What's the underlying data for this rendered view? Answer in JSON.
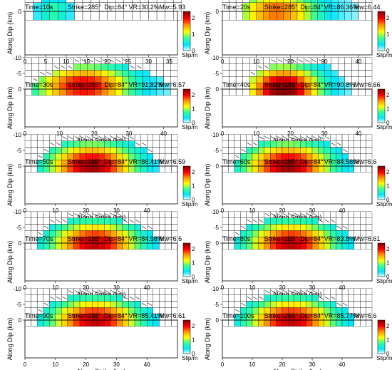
{
  "figure": {
    "colorbar_label": "Slip/m",
    "colorbar_ticks": [
      "2",
      "1",
      "0"
    ],
    "colormap": [
      "#ffffff",
      "#00e5ff",
      "#33ff99",
      "#ffff00",
      "#ff9900",
      "#ff0000",
      "#8b0000"
    ]
  },
  "chart_data": [
    {
      "type": "heatmap",
      "title": "Time=10s",
      "strike": "Strike=285°",
      "dip": "Dip=84°",
      "vr": "VR=30.2%",
      "mw": "Mw=5.93",
      "xlabel": "Along Strike (km)",
      "ylabel": "Along Dip (km)",
      "xlim": [
        0,
        37
      ],
      "ylim": [
        -10,
        0
      ],
      "xticks": [
        0,
        5,
        10,
        15,
        20,
        25,
        30,
        35
      ],
      "yticks": [
        0,
        -5,
        -10
      ],
      "cell_km": 2.0,
      "rupture": {
        "x_start": 2,
        "x_end": 13,
        "depth": 6,
        "peak_x": 7,
        "peak_depth": 2,
        "peak_slip": 0.6
      }
    },
    {
      "type": "heatmap",
      "title": "Time=20s",
      "strike": "Strike=285°",
      "dip": "Dip=84°",
      "vr": "VR=86.36%",
      "mw": "Mw=6.44",
      "xlabel": "Along Strike (km)",
      "ylabel": "Along Dip (km)",
      "xlim": [
        0,
        44
      ],
      "ylim": [
        -10,
        0
      ],
      "xticks": [
        0,
        10,
        20,
        30,
        40
      ],
      "yticks": [
        0,
        -5,
        -10
      ],
      "cell_km": 2.0,
      "rupture": {
        "x_start": 5,
        "x_end": 41,
        "depth": 8,
        "peak_x": 16,
        "peak_depth": 2,
        "peak_slip": 1.6
      }
    },
    {
      "type": "heatmap",
      "title": "Time=30s",
      "strike": "Strike=285°",
      "dip": "Dip=84°",
      "vr": "VR=91.82%",
      "mw": "Mw=6.57",
      "xlabel": "Along Strike (km)",
      "ylabel": "Along Dip (km)",
      "xlim": [
        0,
        44
      ],
      "ylim": [
        -12,
        0
      ],
      "xticks": [
        0,
        10,
        20,
        30,
        40
      ],
      "yticks": [
        0,
        -5,
        -10
      ],
      "cell_km": 2.0,
      "rupture": {
        "x_start": 2,
        "x_end": 42,
        "depth": 10,
        "peak_x": 17,
        "peak_depth": 3,
        "peak_slip": 2.0
      }
    },
    {
      "type": "heatmap",
      "title": "Time=40s",
      "strike": "Strike=285°",
      "dip": "Dip=84°",
      "vr": "VR=90.8%",
      "mw": "Mw=6.66",
      "xlabel": "Along Strike (km)",
      "ylabel": "Along Dip (km)",
      "xlim": [
        0,
        44
      ],
      "ylim": [
        -12,
        0
      ],
      "xticks": [
        0,
        10,
        20,
        30,
        40
      ],
      "yticks": [
        0,
        -5,
        -10
      ],
      "cell_km": 2.0,
      "rupture": {
        "x_start": 7,
        "x_end": 38,
        "depth": 11,
        "peak_x": 18,
        "peak_depth": 2,
        "peak_slip": 2.4
      }
    },
    {
      "type": "heatmap",
      "title": "Time=50s",
      "strike": "Strike=285°",
      "dip": "Dip=84°",
      "vr": "VR=86.41%",
      "mw": "Mw=6.59",
      "xlabel": "Along Strike (km)",
      "ylabel": "Along Dip (km)",
      "xlim": [
        0,
        50
      ],
      "ylim": [
        -12,
        0
      ],
      "xticks": [
        0,
        10,
        20,
        30,
        40
      ],
      "yticks": [
        0,
        -5,
        -10
      ],
      "cell_km": 2.0,
      "rupture": {
        "x_start": 3,
        "x_end": 44,
        "depth": 11,
        "peak_x": 22,
        "peak_depth": 2,
        "peak_slip": 2.2
      }
    },
    {
      "type": "heatmap",
      "title": "Time=60s",
      "strike": "Strike=285°",
      "dip": "Dip=84°",
      "vr": "VR=84.58%",
      "mw": "Mw=6.6",
      "xlabel": "Along Strike (km)",
      "ylabel": "Along Dip (km)",
      "xlim": [
        0,
        50
      ],
      "ylim": [
        -12,
        0
      ],
      "xticks": [
        0,
        10,
        20,
        30,
        40
      ],
      "yticks": [
        0,
        -5,
        -10
      ],
      "cell_km": 2.0,
      "rupture": {
        "x_start": 3,
        "x_end": 44,
        "depth": 11,
        "peak_x": 22,
        "peak_depth": 2,
        "peak_slip": 2.2
      }
    },
    {
      "type": "heatmap",
      "title": "Time=70s",
      "strike": "Strike=285°",
      "dip": "Dip=84°",
      "vr": "VR=84.98%",
      "mw": "Mw=6.6",
      "xlabel": "Along Strike (km)",
      "ylabel": "Along Dip (km)",
      "xlim": [
        0,
        50
      ],
      "ylim": [
        -12,
        0
      ],
      "xticks": [
        0,
        10,
        20,
        30,
        40
      ],
      "yticks": [
        0,
        -5,
        -10
      ],
      "cell_km": 2.0,
      "rupture": {
        "x_start": 3,
        "x_end": 44,
        "depth": 10,
        "peak_x": 23,
        "peak_depth": 2,
        "peak_slip": 2.1
      }
    },
    {
      "type": "heatmap",
      "title": "Time=80s",
      "strike": "Strike=285°",
      "dip": "Dip=84°",
      "vr": "VR=83.8%",
      "mw": "Mw=6.61",
      "xlabel": "Along Strike (km)",
      "ylabel": "Along Dip (km)",
      "xlim": [
        0,
        50
      ],
      "ylim": [
        -12,
        0
      ],
      "xticks": [
        0,
        10,
        20,
        30,
        40
      ],
      "yticks": [
        0,
        -5,
        -10
      ],
      "cell_km": 2.0,
      "rupture": {
        "x_start": 3,
        "x_end": 44,
        "depth": 10,
        "peak_x": 23,
        "peak_depth": 2,
        "peak_slip": 2.1
      }
    },
    {
      "type": "heatmap",
      "title": "Time=90s",
      "strike": "Strike=285°",
      "dip": "Dip=84°",
      "vr": "VR=85.41%",
      "mw": "Mw=6.61",
      "xlabel": "Along Strike (km)",
      "ylabel": "Along Dip (km)",
      "xlim": [
        0,
        50
      ],
      "ylim": [
        -12,
        0
      ],
      "xticks": [
        0,
        10,
        20,
        30,
        40
      ],
      "yticks": [
        0,
        -5,
        -10
      ],
      "cell_km": 2.0,
      "rupture": {
        "x_start": 3,
        "x_end": 44,
        "depth": 10,
        "peak_x": 23,
        "peak_depth": 2,
        "peak_slip": 2.1
      }
    },
    {
      "type": "heatmap",
      "title": "Time=100s",
      "strike": "Strike=285°",
      "dip": "Dip=84°",
      "vr": "VR=85.77%",
      "mw": "Mw=6.6",
      "xlabel": "Along Strike (km)",
      "ylabel": "Along Dip (km)",
      "xlim": [
        0,
        50
      ],
      "ylim": [
        -12,
        0
      ],
      "xticks": [
        0,
        10,
        20,
        30,
        40
      ],
      "yticks": [
        0,
        -5,
        -10
      ],
      "cell_km": 2.0,
      "rupture": {
        "x_start": 3,
        "x_end": 44,
        "depth": 10,
        "peak_x": 23,
        "peak_depth": 2,
        "peak_slip": 2.1
      }
    }
  ]
}
